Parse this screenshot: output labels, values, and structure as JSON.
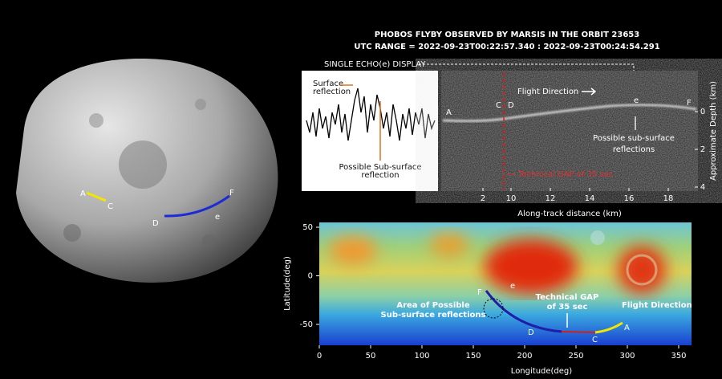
{
  "title": "PHOBOS FLYBY OBSERVED BY MARSIS IN THE ORBIT 23653",
  "subtitle": "UTC RANGE = 2022-09-23T00:22:57.340 : 2022-09-23T00:24:54.291",
  "phobos_image": {
    "labels": [
      "A",
      "C",
      "D",
      "e",
      "F"
    ]
  },
  "echo_panel": {
    "title": "SINGLE ECHO(e) DISPLAY",
    "surface_label": [
      "Surface",
      "reflection"
    ],
    "subsurface_label": [
      "Possible Sub-surface",
      "reflection"
    ]
  },
  "radargram": {
    "labels": [
      "A",
      "C",
      "D",
      "e",
      "F"
    ],
    "flight_direction": "Flight Direction",
    "subsurface_label": [
      "Possible sub-surface",
      "reflections"
    ],
    "gap_label": "Technical GAP of 35 sec",
    "xlabel": "Along-track distance (km)",
    "ylabel": "Approximate Depth (km)",
    "xticks": [
      2,
      10,
      12,
      14,
      16,
      18
    ],
    "yticks": [
      0,
      2,
      4
    ]
  },
  "map": {
    "xlabel": "Longitude(deg)",
    "ylabel": "Latitude(deg)",
    "xticks": [
      0,
      50,
      100,
      150,
      200,
      250,
      300,
      350
    ],
    "yticks": [
      50,
      0,
      -50
    ],
    "area_label": [
      "Area of Possible",
      "Sub-surface reflections"
    ],
    "gap_label": [
      "Technical GAP",
      "of 35 sec"
    ],
    "flight_direction": "Flight Direction",
    "labels": [
      "F",
      "e",
      "D",
      "C",
      "A"
    ]
  }
}
